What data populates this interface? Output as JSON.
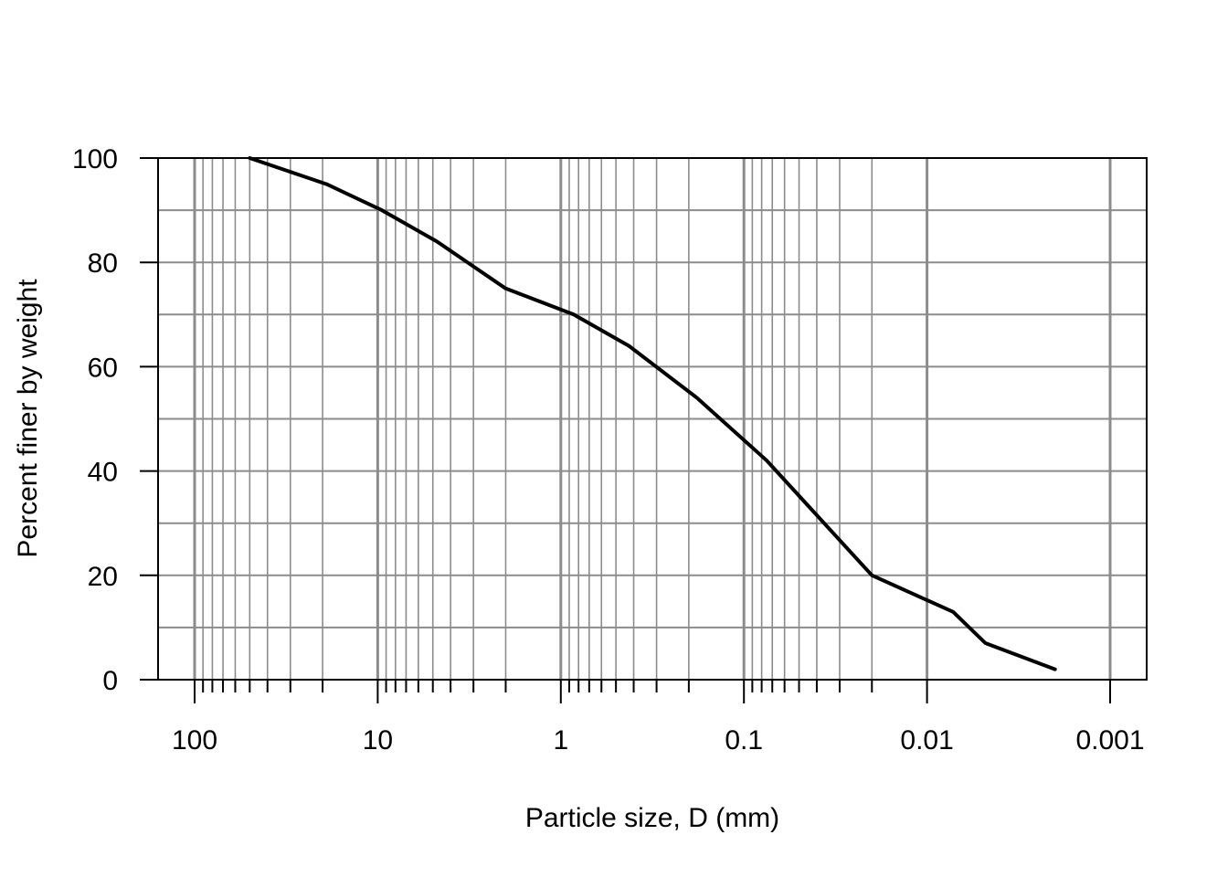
{
  "chart_data": {
    "type": "line",
    "title": "",
    "xlabel": "Particle size, D (mm)",
    "ylabel": "Percent finer by weight",
    "x_scale": "log",
    "x_reversed": true,
    "xlim": [
      150,
      0.00067
    ],
    "ylim": [
      0,
      100
    ],
    "grid": true,
    "x_ticks": [
      {
        "value": 100,
        "label": "100"
      },
      {
        "value": 10,
        "label": "10"
      },
      {
        "value": 1,
        "label": "1"
      },
      {
        "value": 0.1,
        "label": "0.1"
      },
      {
        "value": 0.01,
        "label": "0.01"
      },
      {
        "value": 0.001,
        "label": "0.001"
      }
    ],
    "y_ticks": [
      {
        "value": 0,
        "label": "0"
      },
      {
        "value": 20,
        "label": "20"
      },
      {
        "value": 40,
        "label": "40"
      },
      {
        "value": 60,
        "label": "60"
      },
      {
        "value": 80,
        "label": "80"
      },
      {
        "value": 100,
        "label": "100"
      }
    ],
    "series": [
      {
        "x": [
          50,
          19,
          9.5,
          4.75,
          2.0,
          0.85,
          0.425,
          0.18,
          0.075,
          0.02,
          0.0072,
          0.0048,
          0.002
        ],
        "y": [
          100,
          95,
          90,
          84,
          75,
          70,
          64,
          54,
          42,
          20,
          13,
          7,
          2
        ]
      }
    ],
    "colors": {
      "line": "#000000",
      "grid": "#8c8c8c",
      "frame": "#000000"
    }
  }
}
